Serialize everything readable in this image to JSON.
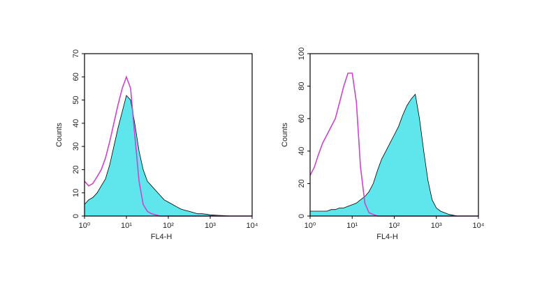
{
  "chart_data": [
    {
      "type": "area",
      "xscale": "log",
      "xlabel": "FL4-H",
      "ylabel": "Counts",
      "xlim": [
        1,
        10000
      ],
      "xticks": [
        {
          "value": 1,
          "label": "10⁰"
        },
        {
          "value": 10,
          "label": "10¹"
        },
        {
          "value": 100,
          "label": "10²"
        },
        {
          "value": 1000,
          "label": "10³"
        },
        {
          "value": 10000,
          "label": "10⁴"
        }
      ],
      "ylim": [
        0,
        70
      ],
      "yticks": [
        0,
        10,
        20,
        30,
        40,
        50,
        60,
        70
      ],
      "x": [
        1,
        1.26,
        1.58,
        2,
        2.51,
        3.16,
        3.98,
        5.01,
        6.31,
        7.94,
        10,
        12.6,
        15.8,
        20,
        25.1,
        31.6,
        39.8,
        50.1,
        63.1,
        79.4,
        100,
        126,
        158,
        200,
        251,
        316,
        398,
        501,
        631,
        794,
        1000,
        1260,
        1580,
        2000,
        2510,
        3160,
        3980,
        5010,
        6310,
        7940,
        10000
      ],
      "series": [
        {
          "color": "#5ee6ec",
          "stroke": "#000000",
          "fill": true,
          "values": [
            5,
            7,
            8,
            10,
            13,
            16,
            22,
            30,
            38,
            45,
            52,
            50,
            40,
            28,
            20,
            15,
            13,
            11,
            9,
            7,
            6,
            5,
            4,
            3,
            2.5,
            2,
            1.5,
            1,
            1,
            0.8,
            0.5,
            0.4,
            0.3,
            0.2,
            0.1,
            0,
            0,
            0,
            0,
            0,
            0
          ]
        },
        {
          "color": "#cc44cc",
          "stroke": "#cc44cc",
          "fill": false,
          "values": [
            15,
            13,
            14,
            17,
            20,
            25,
            32,
            40,
            48,
            55,
            60,
            55,
            35,
            15,
            5,
            2,
            1,
            0.5,
            0,
            0,
            0,
            0,
            0,
            0,
            0,
            0,
            0,
            0,
            0,
            0,
            0,
            0,
            0,
            0,
            0,
            0,
            0,
            0,
            0,
            0,
            0
          ]
        }
      ]
    },
    {
      "type": "area",
      "xscale": "log",
      "xlabel": "FL4-H",
      "ylabel": "Counts",
      "xlim": [
        1,
        10000
      ],
      "xticks": [
        {
          "value": 1,
          "label": "10⁰"
        },
        {
          "value": 10,
          "label": "10¹"
        },
        {
          "value": 100,
          "label": "10²"
        },
        {
          "value": 1000,
          "label": "10³"
        },
        {
          "value": 10000,
          "label": "10⁴"
        }
      ],
      "ylim": [
        0,
        100
      ],
      "yticks": [
        0,
        20,
        40,
        60,
        80,
        100
      ],
      "x": [
        1,
        1.26,
        1.58,
        2,
        2.51,
        3.16,
        3.98,
        5.01,
        6.31,
        7.94,
        10,
        12.6,
        15.8,
        20,
        25.1,
        31.6,
        39.8,
        50.1,
        63.1,
        79.4,
        100,
        126,
        158,
        200,
        251,
        316,
        398,
        501,
        631,
        794,
        1000,
        1260,
        1580,
        2000,
        2510,
        3160,
        3980,
        5010,
        6310,
        7940,
        10000
      ],
      "series": [
        {
          "color": "#5ee6ec",
          "stroke": "#000000",
          "fill": true,
          "values": [
            3,
            3,
            3,
            3,
            3,
            4,
            4,
            5,
            5,
            6,
            7,
            8,
            10,
            12,
            15,
            20,
            28,
            35,
            40,
            45,
            50,
            55,
            62,
            68,
            72,
            75,
            60,
            40,
            22,
            10,
            5,
            3,
            2,
            1,
            0.5,
            0,
            0,
            0,
            0,
            0,
            0
          ]
        },
        {
          "color": "#cc44cc",
          "stroke": "#cc44cc",
          "fill": false,
          "values": [
            25,
            30,
            38,
            45,
            50,
            55,
            60,
            70,
            80,
            88,
            88,
            70,
            30,
            8,
            2,
            1,
            0,
            0,
            0,
            0,
            0,
            0,
            0,
            0,
            0,
            0,
            0,
            0,
            0,
            0,
            0,
            0,
            0,
            0,
            0,
            0,
            0,
            0,
            0,
            0,
            0
          ]
        }
      ]
    }
  ]
}
